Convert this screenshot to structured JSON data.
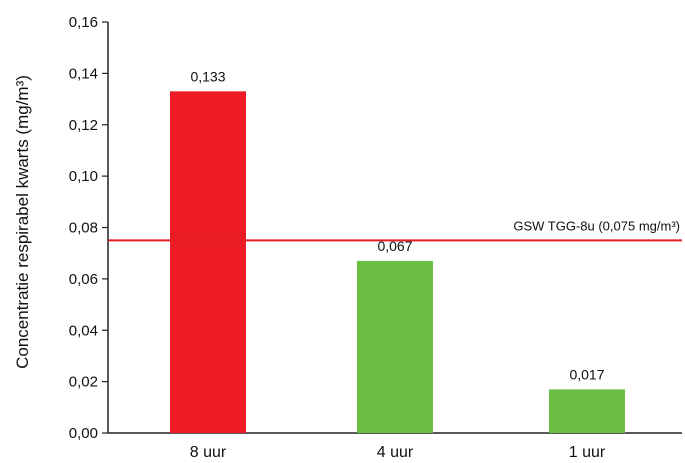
{
  "chart_data": {
    "type": "bar",
    "categories": [
      "8 uur",
      "4 uur",
      "1 uur"
    ],
    "values": [
      0.133,
      0.067,
      0.017
    ],
    "value_labels": [
      "0,133",
      "0,067",
      "0,017"
    ],
    "bar_colors": [
      "#ed1c24",
      "#6cbd45",
      "#6cbd45"
    ],
    "title": "",
    "xlabel": "",
    "ylabel": "Concentratie respirabel kwarts (mg/m³)",
    "ylim": [
      0,
      0.16
    ],
    "yticks": [
      0,
      0.02,
      0.04,
      0.06,
      0.08,
      0.1,
      0.12,
      0.14,
      0.16
    ],
    "ytick_labels": [
      "0,00",
      "0,02",
      "0,04",
      "0,06",
      "0,08",
      "0,10",
      "0,12",
      "0,14",
      "0,16"
    ],
    "reference_line": {
      "value": 0.075,
      "label": "GSW TGG-8u (0,075 mg/m³)",
      "color": "#e31e24"
    },
    "grid": false,
    "legend": "none"
  }
}
